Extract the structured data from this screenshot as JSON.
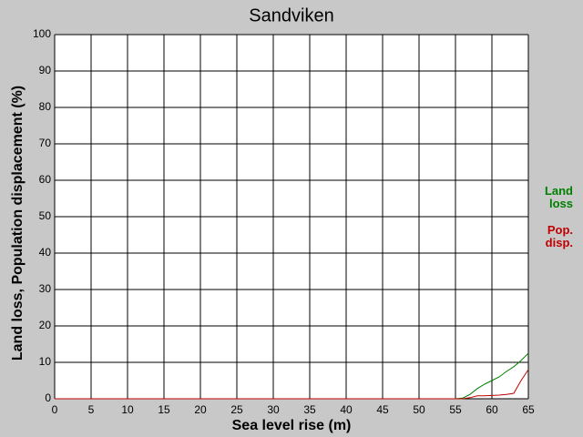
{
  "chart_data": {
    "type": "line",
    "title": "Sandviken",
    "x_label": "Sea level rise (m)",
    "y_label": "Land loss, Population displacement (%)",
    "x": [
      0,
      55,
      56,
      57,
      58,
      59,
      60,
      61,
      62,
      63,
      64,
      65
    ],
    "series": [
      {
        "name": "Land loss",
        "color": "#008000",
        "values": [
          0,
          0,
          0.2,
          1.2,
          2.8,
          4,
          5,
          6,
          7.5,
          8.8,
          10.5,
          12.5
        ]
      },
      {
        "name": "Pop. disp.",
        "color": "#c00000",
        "values": [
          0,
          0,
          0,
          0.3,
          0.8,
          0.8,
          0.9,
          1,
          1.2,
          1.5,
          5,
          8
        ]
      }
    ],
    "xlim": [
      0,
      65
    ],
    "xticks": [
      0,
      5,
      10,
      15,
      20,
      25,
      30,
      35,
      40,
      45,
      50,
      55,
      60,
      65
    ],
    "ylim": [
      0,
      100
    ],
    "yticks": [
      0,
      10,
      20,
      30,
      40,
      50,
      60,
      70,
      80,
      90,
      100
    ],
    "grid": true
  }
}
